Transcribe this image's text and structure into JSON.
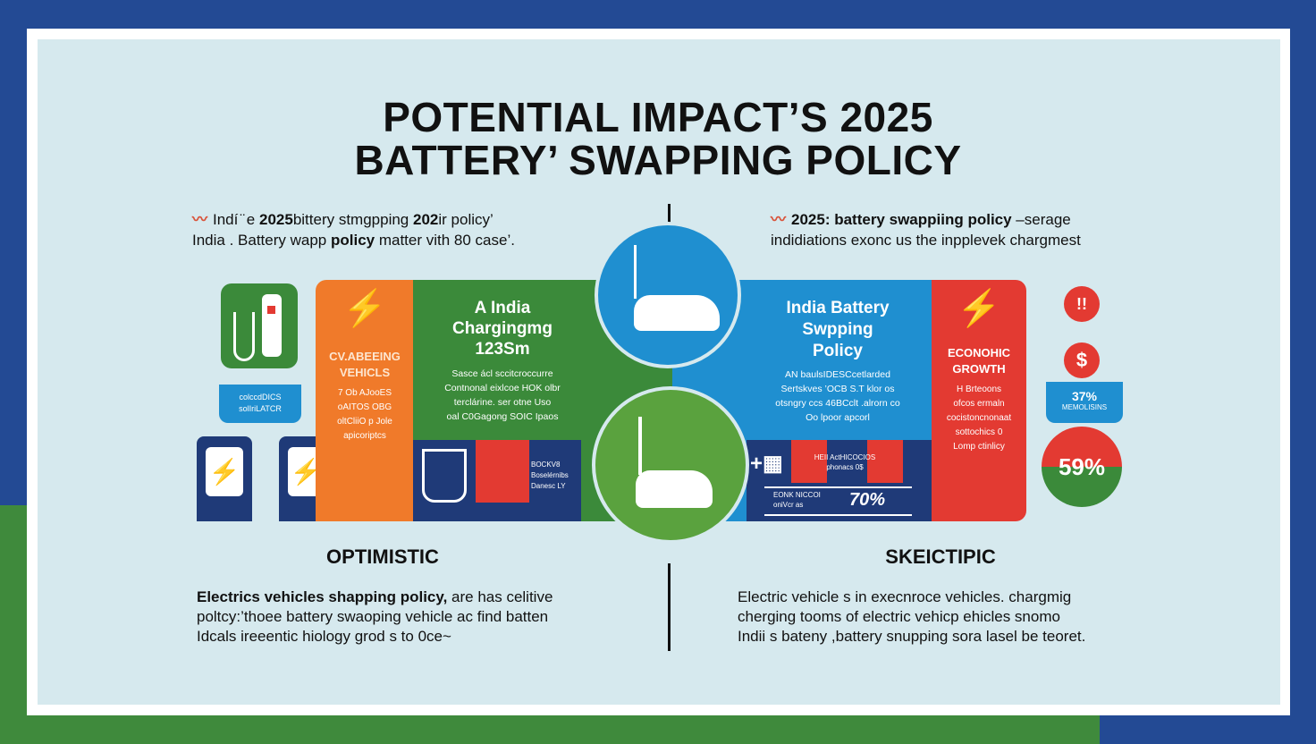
{
  "title": {
    "line1": "POTENTIAL IMPACT’S 2025",
    "line2": "BATTERY’ SWAPPING POLICY"
  },
  "intro_left": {
    "line1_a": "Indí ̈ e ",
    "line1_b": "2025",
    "line1_c": "bittery stmgpping ",
    "line1_d": "202",
    "line1_e": "ir poliсy’",
    "line2_a": "India . Battery wapp ",
    "line2_b": "policy",
    "line2_c": " matter vith 80 case’."
  },
  "intro_right": {
    "line1_a": "2025: battery swappiing policy",
    "line1_b": " –serage",
    "line2": "indidiations exonc us the inpplevek chargmest"
  },
  "left_panel": {
    "station_label": [
      "colccdDICS",
      "solIriLATCR"
    ],
    "orange_title": [
      "CV.ABEEING",
      "VEHICLS"
    ],
    "orange_text": [
      "7 Ob AJooES",
      "oAITOS OBG",
      "oltCliiO p Jole",
      "apicoriptcs"
    ],
    "green_title": [
      "A India",
      "Chargingmg",
      "123Sm"
    ],
    "green_text": [
      "Sasce ácl sccitcroccurre",
      "Contnonal eixlcoe HOK olbr",
      "terclárine. ser otne Uso",
      "oal C0Gagong SOIC Ipaos"
    ],
    "navy_text": [
      "BOCKV8",
      "Boselérnibs",
      "Danesc LY"
    ]
  },
  "right_panel": {
    "blue_title": [
      "India Battery",
      "Swpping",
      "Policy"
    ],
    "blue_text": [
      "AN baulsIDESCcetlarded",
      "Sertskves ’OCB S.T klor os",
      "otsngry ccs 46BCclt .alrorn co",
      "Oo lpoor apcorl"
    ],
    "navy_text": [
      "HEII ActHICOCIOS",
      "phonacs 0$"
    ],
    "navy_text2": [
      "EONK NICCOI",
      "oniVcr as"
    ],
    "navy_value": "70%",
    "red_title": [
      "ECONOHIC",
      "GROWTH"
    ],
    "red_text": [
      "H Brteoons",
      "ofcos ermaln",
      "cocistoncnonaat",
      "sottochics 0",
      "Lomp ctinlicy"
    ],
    "stat_box_value": "37%",
    "stat_box_label": "MEMOLISINS",
    "big_stat": "59%",
    "alert_glyph": "!!",
    "dollar_glyph": "$"
  },
  "optimistic": {
    "heading": "OPTIMISTIC",
    "line1_bold": "Electrics vehicles shapping policy,",
    "line1_rest": " are has celitive",
    "line2": "poltcy:’thoee battery swaoping vehicle ac find batten",
    "line3": "Idcals ireeentic hiology grod s to 0ce~"
  },
  "skeptic": {
    "heading": "SKEICTIPIC",
    "line1": "Electric vehicle s in execnroce vehicles. chargmig",
    "line2": "cherging tooms of electric vehicp ehicles snomo",
    "line3": "Indii s bateny ,battery snupping sora lasel be teoret."
  },
  "colors": {
    "navy": "#1f3a78",
    "orange": "#f07a2a",
    "green": "#3b8a3a",
    "blue": "#1f8fd0",
    "red": "#e33a32",
    "panel": "#d6e9ee"
  }
}
